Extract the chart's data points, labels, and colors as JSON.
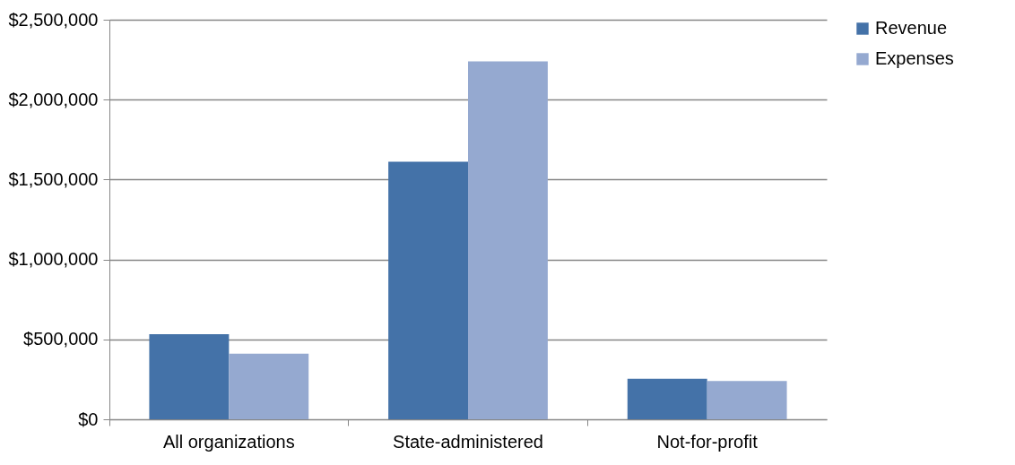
{
  "chart_data": {
    "type": "bar",
    "categories": [
      "All organizations",
      "State-administered",
      "Not-for-profit"
    ],
    "series": [
      {
        "name": "Revenue",
        "color": "#4472a8",
        "values": [
          532000,
          1611000,
          254000
        ]
      },
      {
        "name": "Expenses",
        "color": "#95a9d0",
        "values": [
          410000,
          2240000,
          240000
        ]
      }
    ],
    "ylim": [
      0,
      2500000
    ],
    "yticks": [
      {
        "value": 0,
        "label": "$0"
      },
      {
        "value": 500000,
        "label": "$500,000"
      },
      {
        "value": 1000000,
        "label": "$1,000,000"
      },
      {
        "value": 1500000,
        "label": "$1,500,000"
      },
      {
        "value": 2000000,
        "label": "$2,000,000"
      },
      {
        "value": 2500000,
        "label": "$2,500,000"
      }
    ],
    "grid": "y",
    "legend": "right"
  }
}
